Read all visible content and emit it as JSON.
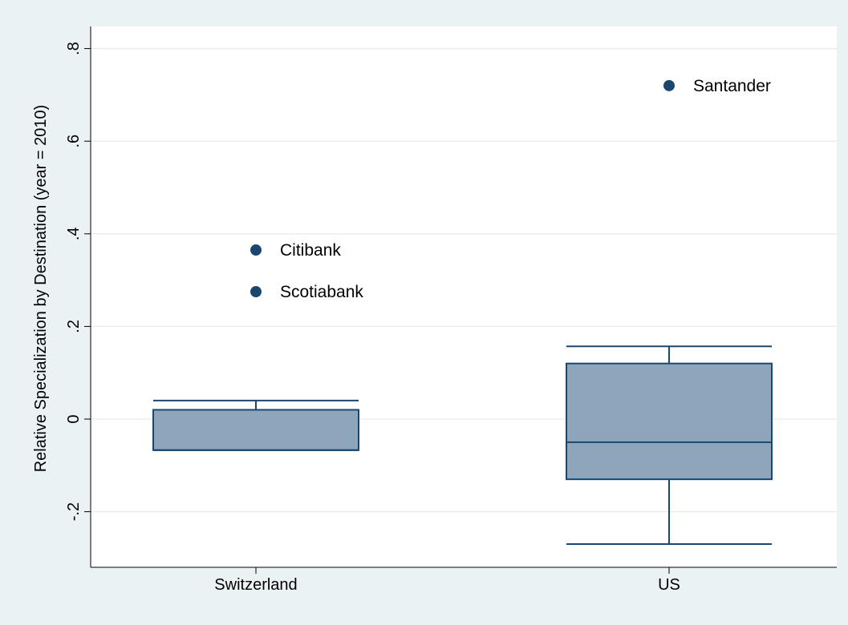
{
  "chart_data": {
    "type": "box",
    "title": "",
    "xlabel": "",
    "ylabel": "Relative Specialization by Destination (year = 2010)",
    "ylim": [
      -0.31,
      0.84
    ],
    "yticks": [
      {
        "value": -0.2,
        "label": "-.2"
      },
      {
        "value": 0,
        "label": "0"
      },
      {
        "value": 0.2,
        "label": ".2"
      },
      {
        "value": 0.4,
        "label": ".4"
      },
      {
        "value": 0.6,
        "label": ".6"
      },
      {
        "value": 0.8,
        "label": ".8"
      }
    ],
    "grid": true,
    "categories": [
      "Switzerland",
      "US"
    ],
    "boxes": [
      {
        "category": "Switzerland",
        "whisker_low": -0.067,
        "q1": -0.067,
        "median": -0.067,
        "q3": 0.02,
        "whisker_high": 0.04
      },
      {
        "category": "US",
        "whisker_low": -0.27,
        "q1": -0.13,
        "median": -0.05,
        "q3": 0.12,
        "whisker_high": 0.157
      }
    ],
    "outliers": [
      {
        "category": "Switzerland",
        "value": 0.365,
        "label": "Citibank"
      },
      {
        "category": "Switzerland",
        "value": 0.275,
        "label": "Scotiabank"
      },
      {
        "category": "US",
        "value": 0.72,
        "label": "Santander"
      }
    ],
    "colors": {
      "background": "#eaf2f3",
      "plot_background": "#ffffff",
      "box_fill": "#8ea6bb",
      "box_stroke": "#1a476f",
      "marker": "#1a476f",
      "grid": "#e8eef0"
    }
  }
}
